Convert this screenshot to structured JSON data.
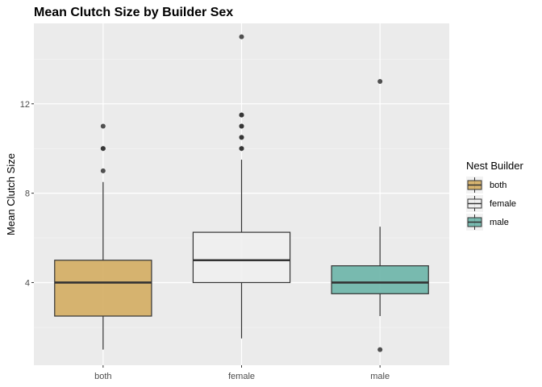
{
  "chart_data": {
    "type": "boxplot",
    "title": "Mean Clutch Size by Builder Sex",
    "xlabel": "",
    "ylabel": "Mean Clutch Size",
    "ylim": [
      0.3,
      15.6
    ],
    "yticks": [
      4,
      8,
      12
    ],
    "categories": [
      "both",
      "female",
      "male"
    ],
    "legend": {
      "title": "Nest Builder",
      "position": "right"
    },
    "grid": true,
    "boxes": [
      {
        "category": "both",
        "color": "#d4ad62",
        "min": 1.0,
        "q1": 2.5,
        "median": 4.0,
        "q3": 5.0,
        "max": 8.5,
        "outliers": [
          9,
          10,
          10,
          11
        ]
      },
      {
        "category": "female",
        "color": "#f0f0f0",
        "min": 1.5,
        "q1": 4.0,
        "median": 5.0,
        "q3": 6.25,
        "max": 9.5,
        "outliers": [
          10,
          10,
          10.5,
          10.5,
          11,
          11,
          11.5,
          11.5,
          15
        ]
      },
      {
        "category": "male",
        "color": "#6cb5a9",
        "min": 2.5,
        "q1": 3.5,
        "median": 4.0,
        "q3": 4.75,
        "max": 6.5,
        "outliers": [
          1,
          13
        ]
      }
    ]
  }
}
